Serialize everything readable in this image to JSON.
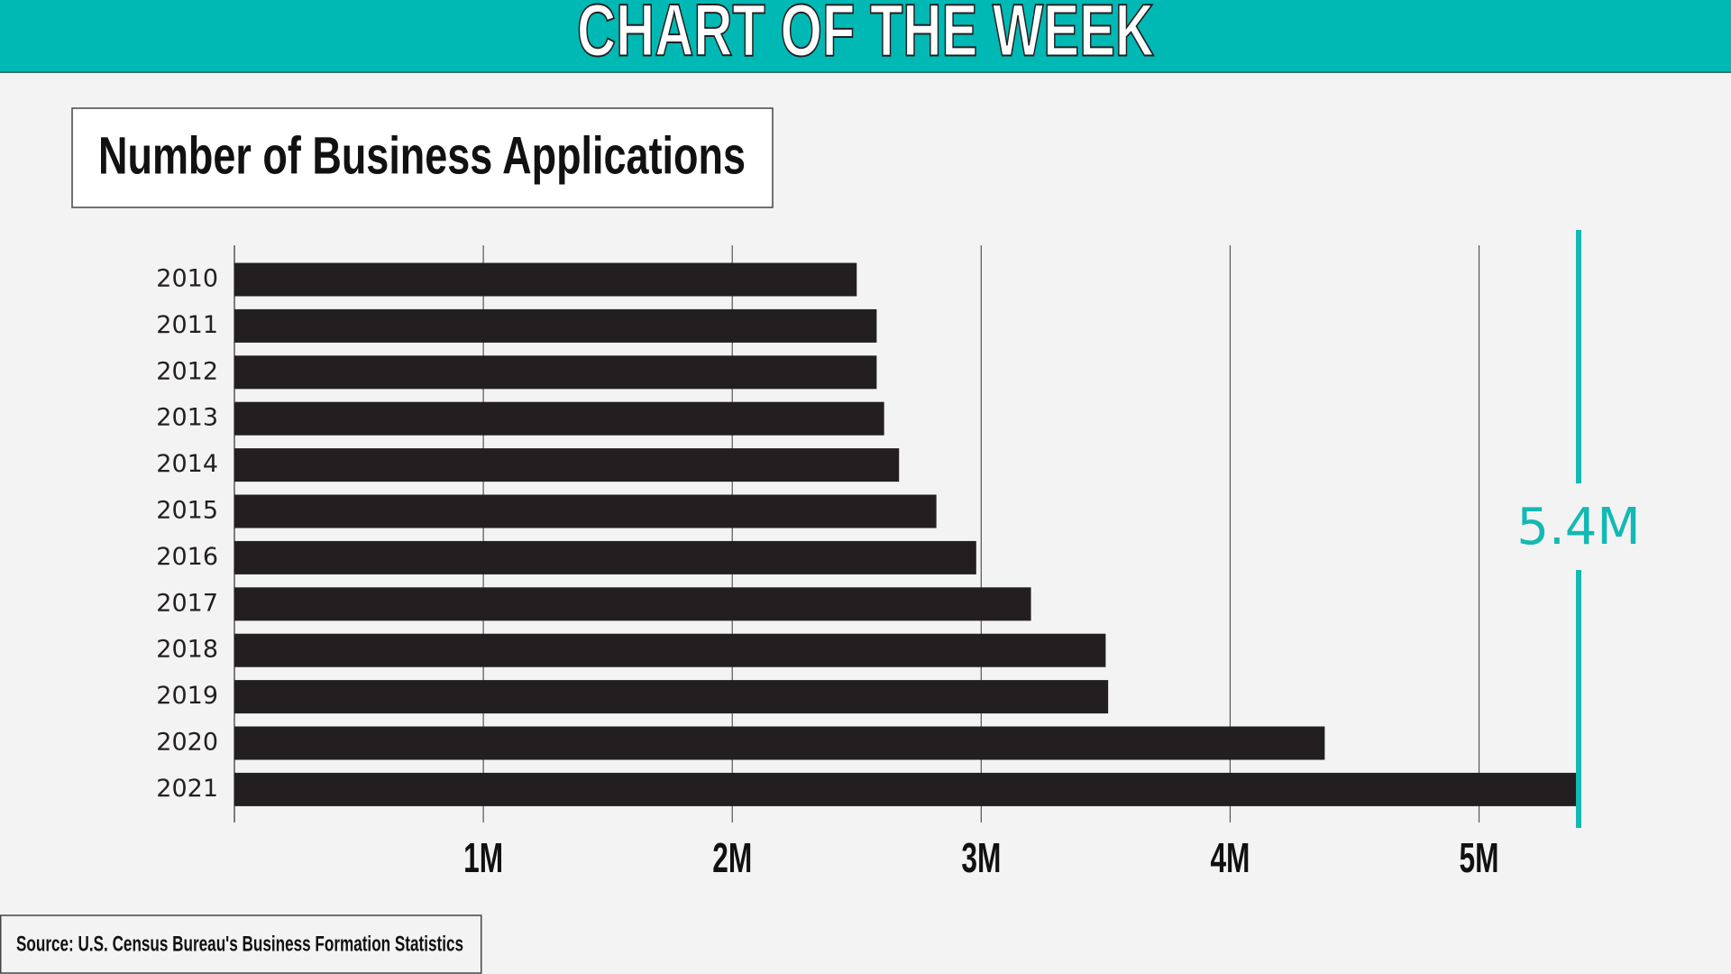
{
  "chart_data": {
    "type": "barh",
    "header": "CHART OF THE WEEK",
    "title": "Number of Business Applications",
    "source": "Source: U.S. Census Bureau's Business Formation Statistics",
    "categories": [
      "2010",
      "2011",
      "2012",
      "2013",
      "2014",
      "2015",
      "2016",
      "2017",
      "2018",
      "2019",
      "2020",
      "2021"
    ],
    "values": [
      2.5,
      2.58,
      2.58,
      2.61,
      2.67,
      2.82,
      2.98,
      3.2,
      3.5,
      3.51,
      4.38,
      5.4
    ],
    "value_labels": [
      null,
      null,
      null,
      null,
      null,
      null,
      null,
      null,
      null,
      null,
      null,
      "5.4M"
    ],
    "color": "#231f20",
    "accent_color": "#13b9b4",
    "xlim": [
      0,
      5.4
    ],
    "xticks": [
      {
        "value": 1,
        "label": "1M"
      },
      {
        "value": 2,
        "label": "2M"
      },
      {
        "value": 3,
        "label": "3M"
      },
      {
        "value": 4,
        "label": "4M"
      },
      {
        "value": 5,
        "label": "5M"
      }
    ],
    "grid": true
  }
}
